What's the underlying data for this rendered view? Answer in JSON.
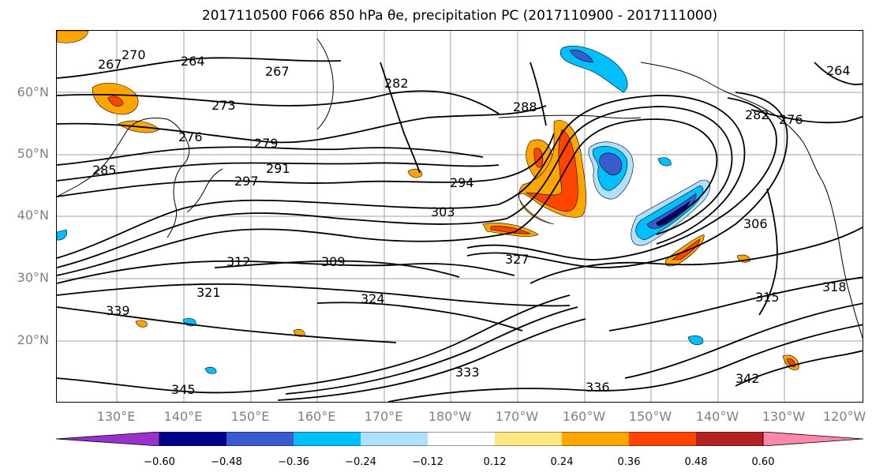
{
  "title": "2017110500 F066 850 hPa θe, precipitation PC (2017110900 - 2017111000)",
  "map": {
    "lat_labels": [
      "60°N",
      "50°N",
      "40°N",
      "30°N",
      "20°N"
    ],
    "lon_labels": [
      "130°E",
      "140°E",
      "150°E",
      "160°E",
      "170°E",
      "180°W",
      "170°W",
      "160°W",
      "150°W",
      "140°W",
      "130°W",
      "120°W"
    ],
    "contour_labels": [
      "267",
      "270",
      "264",
      "267",
      "273",
      "279",
      "285",
      "291",
      "297",
      "276",
      "282",
      "288",
      "294",
      "303",
      "312",
      "309",
      "321",
      "324",
      "327",
      "339",
      "345",
      "333",
      "336",
      "342",
      "315",
      "318",
      "306",
      "276",
      "264",
      "282"
    ],
    "contour_color": "#000000",
    "grid_color": "#a0a0a0"
  },
  "colorbar": {
    "tick_labels": [
      "−0.60",
      "−0.48",
      "−0.36",
      "−0.24",
      "−0.12",
      "0.12",
      "0.24",
      "0.36",
      "0.48",
      "0.60"
    ],
    "colors": [
      "#9932cc",
      "#00008b",
      "#3a5bcc",
      "#00bfff",
      "#b0e0ff",
      "#ffffff",
      "#ffe680",
      "#ffa500",
      "#ff4500",
      "#b22222",
      "#ff88aa"
    ],
    "boundaries": [
      -0.72,
      -0.6,
      -0.48,
      -0.36,
      -0.24,
      -0.12,
      0.12,
      0.24,
      0.36,
      0.48,
      0.6,
      0.72
    ]
  }
}
